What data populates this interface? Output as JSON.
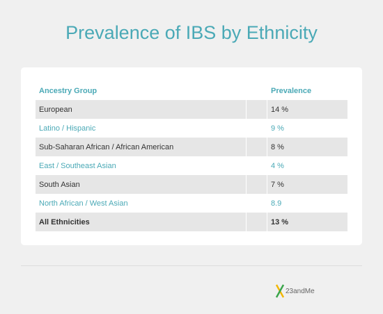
{
  "title": "Prevalence of IBS by Ethnicity",
  "table": {
    "header": [
      "Ancestry Group",
      "Prevalence"
    ],
    "rows": [
      [
        "European",
        "14 %"
      ],
      [
        "Latino / Hispanic",
        "9 %"
      ],
      [
        "Sub-Saharan African / African American",
        "8 %"
      ],
      [
        "East / Southeast Asian",
        "4 %"
      ],
      [
        "South Asian",
        "7 %"
      ],
      [
        "North African / West Asian",
        "8.9"
      ],
      [
        "All Ethnicities",
        "13 %"
      ]
    ]
  },
  "footer": {
    "logo": "23andMe"
  }
}
